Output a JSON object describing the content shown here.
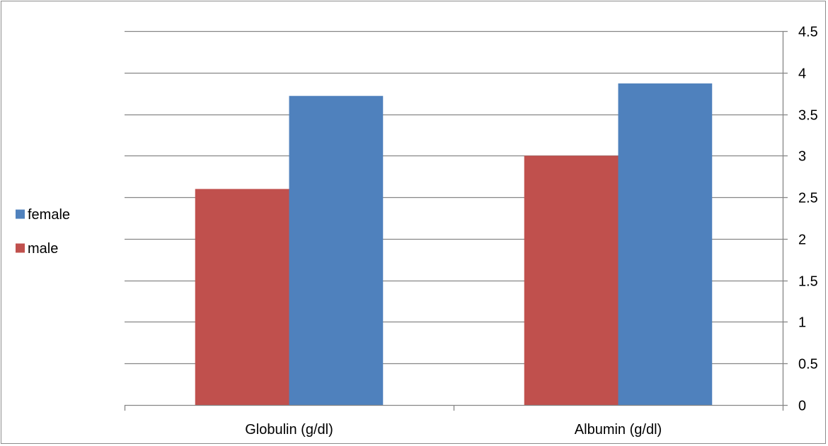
{
  "chart_data": {
    "type": "bar",
    "categories": [
      "Globulin (g/dl)",
      "Albumin (g/dl)"
    ],
    "series": [
      {
        "name": "male",
        "values": [
          2.6,
          3.0
        ],
        "color": "#c0504d"
      },
      {
        "name": "female",
        "values": [
          3.72,
          3.87
        ],
        "color": "#4f81bd"
      }
    ],
    "ylim": [
      0,
      4.5
    ],
    "yticks": [
      "0",
      "0.5",
      "1",
      "1.5",
      "2",
      "2.5",
      "3",
      "3.5",
      "4",
      "4.5"
    ],
    "y_axis_side": "right",
    "grid": true,
    "legend": {
      "placement": "left",
      "entries": [
        "female",
        "male"
      ]
    }
  }
}
